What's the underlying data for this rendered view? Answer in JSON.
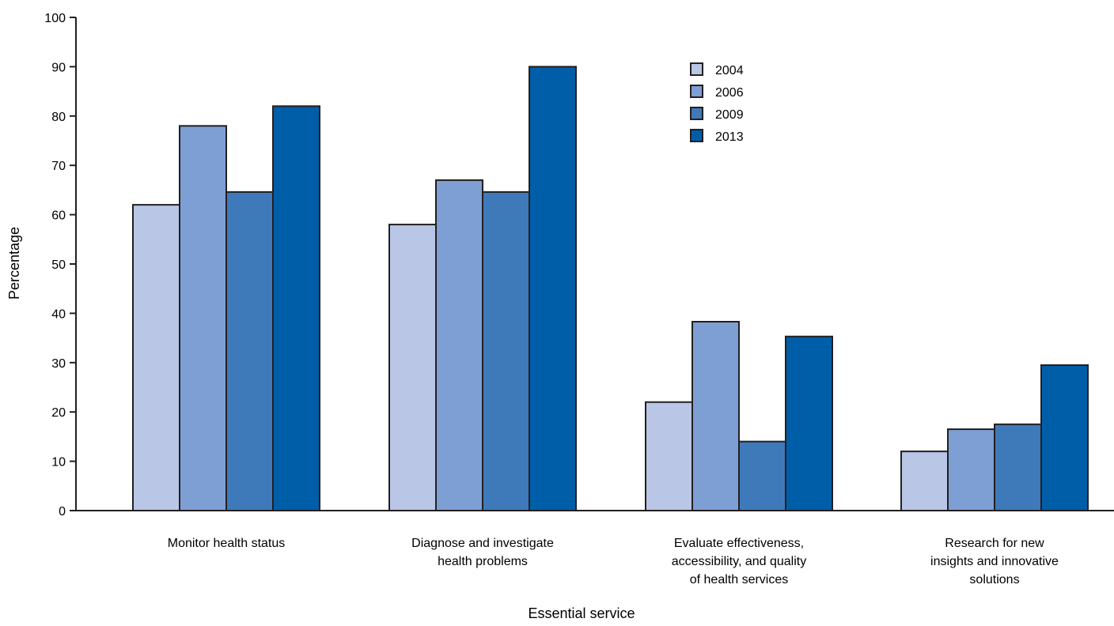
{
  "chart_data": {
    "type": "bar",
    "title": "",
    "xlabel": "Essential service",
    "ylabel": "Percentage",
    "ylim": [
      0,
      100
    ],
    "yticks": [
      0,
      10,
      20,
      30,
      40,
      50,
      60,
      70,
      80,
      90,
      100
    ],
    "grid": false,
    "legend_position": "top-center",
    "categories": [
      [
        "Monitor health status"
      ],
      [
        "Diagnose and investigate",
        "health problems"
      ],
      [
        "Evaluate effectiveness,",
        "accessibility, and quality",
        "of health services"
      ],
      [
        "Research for new",
        "insights and innovative",
        "solutions"
      ]
    ],
    "series": [
      {
        "name": "2004",
        "color": "#b9c6e6",
        "values": [
          62,
          58,
          22,
          12
        ]
      },
      {
        "name": "2006",
        "color": "#7d9fd3",
        "values": [
          78,
          67,
          38.3,
          16.5
        ]
      },
      {
        "name": "2009",
        "color": "#3e7aba",
        "values": [
          64.6,
          64.6,
          14,
          17.5
        ]
      },
      {
        "name": "2013",
        "color": "#005ea9",
        "values": [
          82,
          90,
          35.3,
          29.5
        ]
      }
    ]
  }
}
